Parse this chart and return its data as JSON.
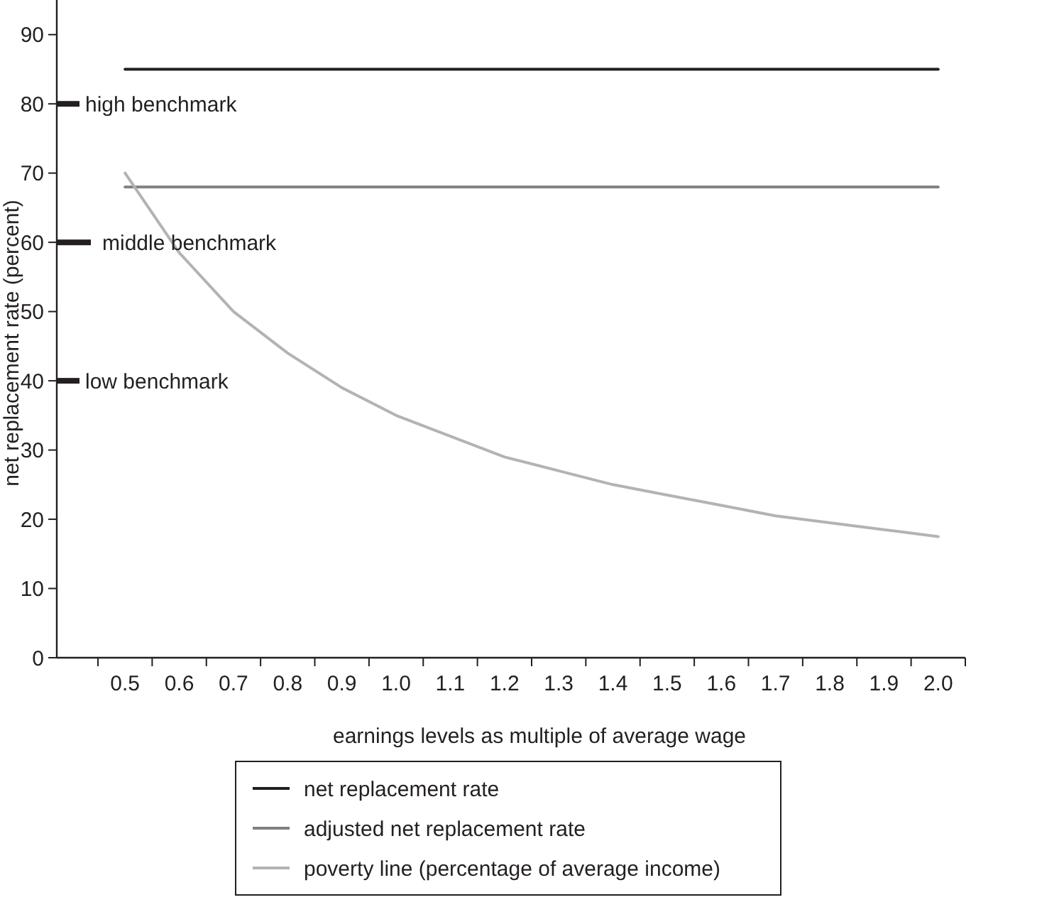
{
  "chart_data": {
    "type": "line",
    "xlabel": "earnings levels as multiple of average wage",
    "ylabel": "net replacement rate (percent)",
    "categories": [
      "0.5",
      "0.6",
      "0.7",
      "0.8",
      "0.9",
      "1.0",
      "1.1",
      "1.2",
      "1.3",
      "1.4",
      "1.5",
      "1.6",
      "1.7",
      "1.8",
      "1.9",
      "2.0"
    ],
    "series": [
      {
        "name": "net replacement rate",
        "color": "#231f20",
        "values": [
          85,
          85,
          85,
          85,
          85,
          85,
          85,
          85,
          85,
          85,
          85,
          85,
          85,
          85,
          85,
          85
        ]
      },
      {
        "name": "adjusted net replacement rate",
        "color": "#808080",
        "values": [
          68,
          68,
          68,
          68,
          68,
          68,
          68,
          68,
          68,
          68,
          68,
          68,
          68,
          68,
          68,
          68
        ]
      },
      {
        "name": "poverty line (percentage of average income)",
        "color": "#b3b3b3",
        "values": [
          70,
          58.5,
          50,
          44,
          39,
          35,
          32,
          29,
          27,
          25,
          23.5,
          22,
          20.5,
          19.5,
          18.5,
          17.5
        ]
      }
    ],
    "ylim": [
      0,
      95
    ],
    "yticks": [
      0,
      10,
      20,
      30,
      40,
      50,
      60,
      70,
      80,
      90
    ],
    "grid": false,
    "legend": "bottom",
    "marker": "none",
    "line_style": "solid",
    "ref_lines": [
      {
        "axis": "y",
        "value": 80,
        "label": "high benchmark",
        "color": "#231f20"
      },
      {
        "axis": "y",
        "value": 60,
        "label": "middle benchmark",
        "color": "#231f20"
      },
      {
        "axis": "y",
        "value": 40,
        "label": "low benchmark",
        "color": "#231f20"
      }
    ]
  }
}
